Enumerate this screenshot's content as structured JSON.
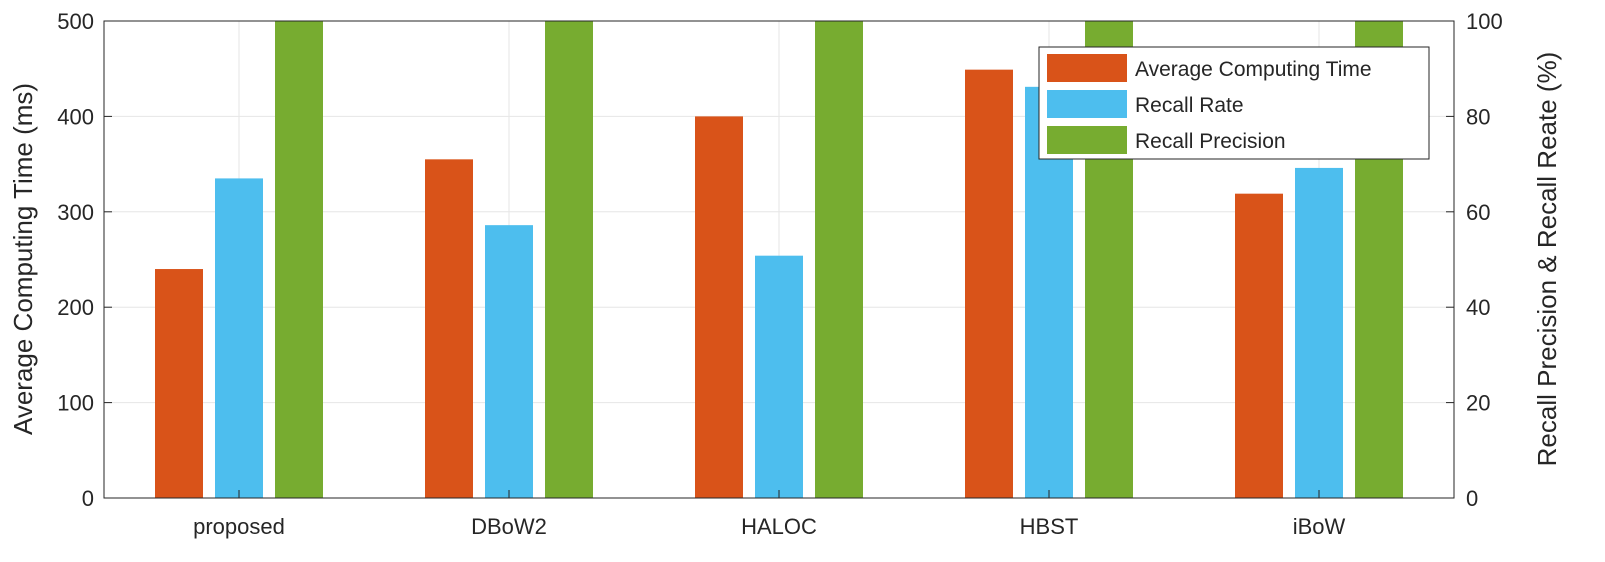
{
  "chart_data": {
    "type": "bar",
    "categories": [
      "proposed",
      "DBoW2",
      "HALOC",
      "HBST",
      "iBoW"
    ],
    "series": [
      {
        "name": "Average Computing Time",
        "axis": "left",
        "color": "#D95319",
        "values": [
          240,
          355,
          400,
          449,
          319
        ]
      },
      {
        "name": "Recall Rate",
        "axis": "right",
        "color": "#4DBEEE",
        "values": [
          67,
          57.2,
          50.8,
          86.2,
          69.2
        ]
      },
      {
        "name": "Recall Precision",
        "axis": "right",
        "color": "#77AC30",
        "values": [
          100,
          100,
          100,
          100,
          100
        ]
      }
    ],
    "ylabel": "Average Computing Time (ms)",
    "ylabel_right": "Recall Precision & Recall Reate (%)",
    "ylim": [
      0,
      500
    ],
    "ylim_right": [
      0,
      100
    ],
    "yticks": [
      0,
      100,
      200,
      300,
      400,
      500
    ],
    "yticks_right": [
      0,
      20,
      40,
      60,
      80,
      100
    ],
    "grid": true,
    "legend_position": "top-right"
  }
}
